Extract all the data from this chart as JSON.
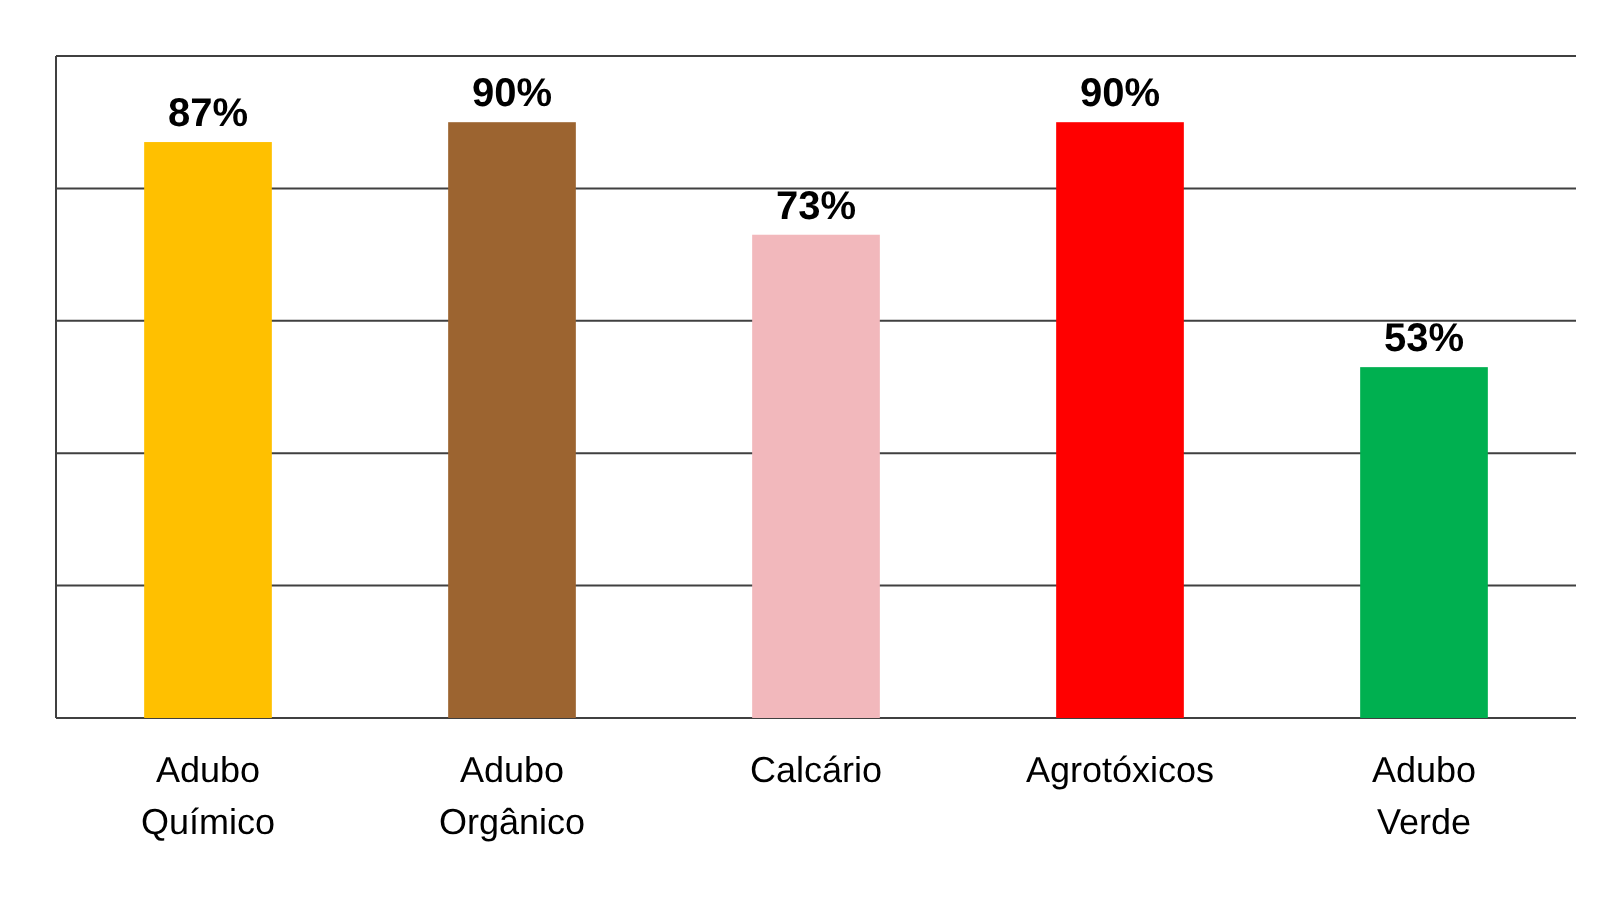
{
  "chart_data": {
    "type": "bar",
    "categories": [
      "Adubo Químico",
      "Adubo Orgânico",
      "Calcário",
      "Agrotóxicos",
      "Adubo Verde"
    ],
    "values": [
      87,
      90,
      73,
      90,
      53
    ],
    "value_labels": [
      "87%",
      "90%",
      "73%",
      "90%",
      "53%"
    ],
    "colors": [
      "#ffc000",
      "#9c6430",
      "#f2b8bc",
      "#ff0000",
      "#00b050"
    ],
    "ylim": [
      0,
      100
    ],
    "yticks": [
      {
        "value": 0,
        "label": null
      },
      {
        "value": 20,
        "label": null
      },
      {
        "value": 40,
        "label": null
      },
      {
        "value": 60,
        "label": null
      },
      {
        "value": 80,
        "label": null
      },
      {
        "value": 100,
        "label": null
      }
    ],
    "grid": "y",
    "tick_labels": "x"
  }
}
